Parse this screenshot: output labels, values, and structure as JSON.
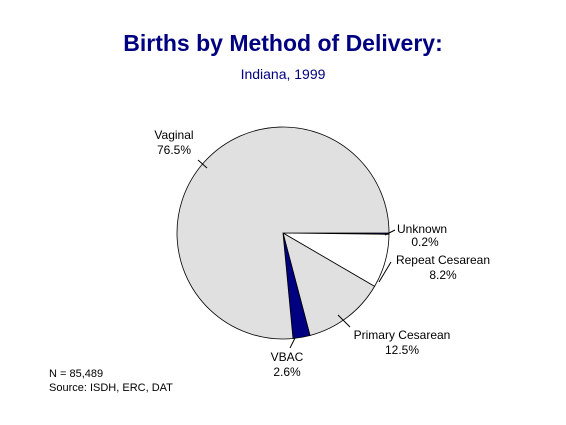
{
  "chart_data": {
    "type": "pie",
    "title": "Births by Method of Delivery:",
    "subtitle": "Indiana, 1999",
    "slices": [
      {
        "label": "Unknown",
        "value": 0.2,
        "value_text": "0.2%",
        "color": "#000080"
      },
      {
        "label": "Repeat Cesarean",
        "value": 8.2,
        "value_text": "8.2%",
        "color": "#ffffff"
      },
      {
        "label": "Primary Cesarean",
        "value": 12.5,
        "value_text": "12.5%",
        "color": "#e0e0e0"
      },
      {
        "label": "VBAC",
        "value": 2.6,
        "value_text": "2.6%",
        "color": "#000080"
      },
      {
        "label": "Vaginal",
        "value": 76.5,
        "value_text": "76.5%",
        "color": "#e0e0e0"
      }
    ],
    "start": "3 o'clock, clockwise"
  },
  "footnotes": {
    "n": "N = 85,489",
    "source": "Source:  ISDH, ERC, DAT"
  }
}
